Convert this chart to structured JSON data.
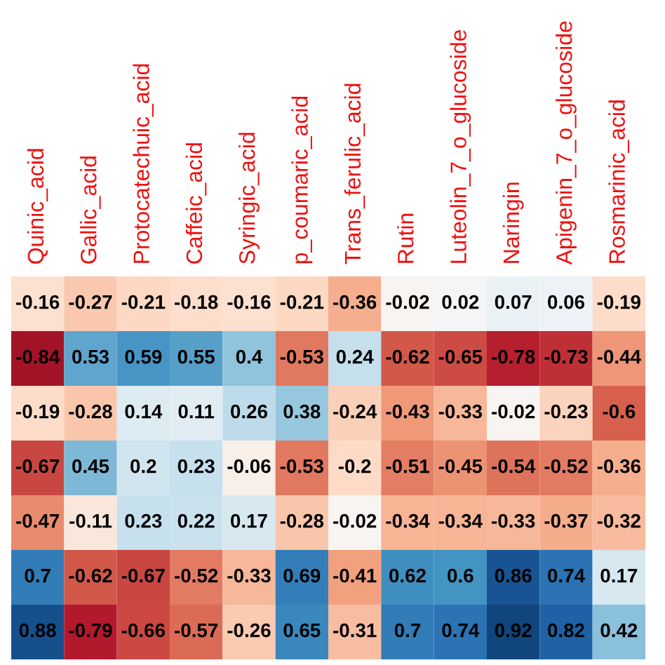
{
  "chart_data": {
    "type": "heatmap",
    "categories": [
      "Quinic_acid",
      "Gallic_acid",
      "Protocatechuic_acid",
      "Caffeic_acid",
      "Syringic_acid",
      "p_coumaric_acid",
      "Trans_ferulic_acid",
      "Rutin",
      "Luteolin_7_o_glucoside",
      "Naringin",
      "Apigenin_7_o_glucoside",
      "Rosmarinic_acid"
    ],
    "y_categories": [
      null,
      null,
      null,
      null,
      null,
      null,
      null
    ],
    "cells": [
      [
        -0.16,
        -0.27,
        -0.21,
        -0.18,
        -0.16,
        -0.21,
        -0.36,
        -0.02,
        0.02,
        0.07,
        0.06,
        -0.19
      ],
      [
        -0.84,
        0.53,
        0.59,
        0.55,
        0.4,
        -0.53,
        0.24,
        -0.62,
        -0.65,
        -0.78,
        -0.73,
        -0.44
      ],
      [
        -0.19,
        -0.28,
        0.14,
        0.11,
        0.26,
        0.38,
        -0.24,
        -0.43,
        -0.33,
        -0.02,
        -0.23,
        -0.6
      ],
      [
        -0.67,
        0.45,
        0.2,
        0.23,
        -0.06,
        -0.53,
        -0.2,
        -0.51,
        -0.45,
        -0.54,
        -0.52,
        -0.36
      ],
      [
        -0.47,
        -0.11,
        0.23,
        0.22,
        0.17,
        -0.28,
        -0.02,
        -0.34,
        -0.34,
        -0.33,
        -0.37,
        -0.32
      ],
      [
        0.7,
        -0.62,
        -0.67,
        -0.52,
        -0.33,
        0.69,
        -0.41,
        0.62,
        0.6,
        0.86,
        0.74,
        0.17
      ],
      [
        0.88,
        -0.79,
        -0.66,
        -0.57,
        -0.26,
        0.65,
        -0.31,
        0.7,
        0.74,
        0.92,
        0.82,
        0.42
      ]
    ],
    "data_labels": true,
    "tick_labels": "x"
  }
}
